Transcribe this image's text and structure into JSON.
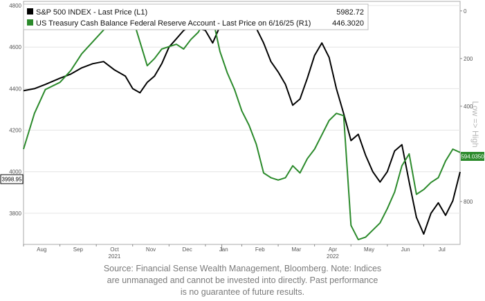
{
  "chart_data": {
    "type": "line",
    "x_axis": {
      "month_labels": [
        "Aug",
        "Sep",
        "Oct",
        "Nov",
        "Dec",
        "Jan",
        "Feb",
        "Mar",
        "Apr",
        "May",
        "Jun",
        "Jul"
      ],
      "year_labels": [
        "2021",
        "2022"
      ],
      "range": [
        "2021-07-15",
        "2022-07-15"
      ]
    },
    "left_axis": {
      "ticks": [
        3800,
        4000,
        4200,
        4400,
        4600,
        4800
      ],
      "range": [
        3650,
        4820
      ]
    },
    "right_axis": {
      "ticks": [
        0,
        200,
        400,
        600,
        800
      ],
      "range": [
        -40,
        980
      ],
      "inverted": true,
      "title": "Low => High"
    },
    "series": [
      {
        "name": "S&P 500 INDEX - Last Price (L1)",
        "legend_value": "5982.72",
        "axis": "left",
        "color": "#000000",
        "last_label": "3998.95",
        "x": [
          0,
          0.3,
          0.6,
          1.0,
          1.3,
          1.6,
          1.9,
          2.2,
          2.5,
          2.8,
          3.0,
          3.2,
          3.4,
          3.6,
          3.8,
          4.0,
          4.2,
          4.4,
          4.6,
          4.8,
          5.0,
          5.2,
          5.4,
          5.6,
          5.8,
          6.0,
          6.2,
          6.4,
          6.6,
          6.8,
          7.0,
          7.2,
          7.4,
          7.6,
          7.8,
          8.0,
          8.2,
          8.4,
          8.6,
          8.8,
          9.0,
          9.2,
          9.4,
          9.6,
          9.8,
          10.0,
          10.2,
          10.4,
          10.6,
          10.8,
          11.0,
          11.2,
          11.4,
          11.6,
          11.8,
          12.0
        ],
        "y": [
          4390,
          4400,
          4420,
          4450,
          4470,
          4500,
          4520,
          4530,
          4490,
          4460,
          4400,
          4380,
          4430,
          4460,
          4520,
          4600,
          4640,
          4680,
          4700,
          4690,
          4680,
          4620,
          4700,
          4780,
          4790,
          4750,
          4720,
          4690,
          4620,
          4530,
          4480,
          4420,
          4320,
          4350,
          4450,
          4560,
          4620,
          4550,
          4400,
          4280,
          4150,
          4180,
          4080,
          4000,
          3950,
          4000,
          4100,
          4130,
          3950,
          3780,
          3700,
          3800,
          3850,
          3790,
          3860,
          3999
        ]
      },
      {
        "name": "US Treasury Cash Balance Federal Reserve Account - Last Price on 6/16/25 (R1)",
        "legend_value": "446.3020",
        "axis": "right",
        "color": "#2b8a2b",
        "last_label": "594.0350",
        "x": [
          0,
          0.3,
          0.6,
          1.0,
          1.3,
          1.6,
          1.9,
          2.2,
          2.4,
          2.6,
          2.8,
          3.0,
          3.2,
          3.4,
          3.6,
          3.8,
          4.0,
          4.2,
          4.4,
          4.6,
          4.8,
          5.0,
          5.2,
          5.4,
          5.6,
          5.8,
          6.0,
          6.2,
          6.4,
          6.6,
          6.8,
          7.0,
          7.2,
          7.4,
          7.6,
          7.8,
          8.0,
          8.2,
          8.4,
          8.6,
          8.8,
          9.0,
          9.2,
          9.4,
          9.6,
          9.8,
          10.0,
          10.2,
          10.4,
          10.6,
          10.8,
          11.0,
          11.2,
          11.4,
          11.6,
          11.8,
          12.0
        ],
        "y": [
          580,
          430,
          330,
          300,
          250,
          180,
          130,
          80,
          60,
          40,
          10,
          30,
          130,
          230,
          200,
          160,
          150,
          140,
          160,
          120,
          90,
          40,
          30,
          170,
          260,
          330,
          420,
          480,
          560,
          680,
          700,
          710,
          700,
          650,
          680,
          620,
          580,
          520,
          460,
          430,
          440,
          900,
          960,
          950,
          920,
          890,
          830,
          760,
          650,
          600,
          770,
          750,
          720,
          700,
          630,
          580,
          594
        ]
      }
    ]
  },
  "caption": {
    "line1": "Source: Financial Sense Wealth Management, Bloomberg. Note: Indices",
    "line2": "are unmanaged and cannot be invested into directly. Past performance",
    "line3": "is no guarantee of future results."
  }
}
